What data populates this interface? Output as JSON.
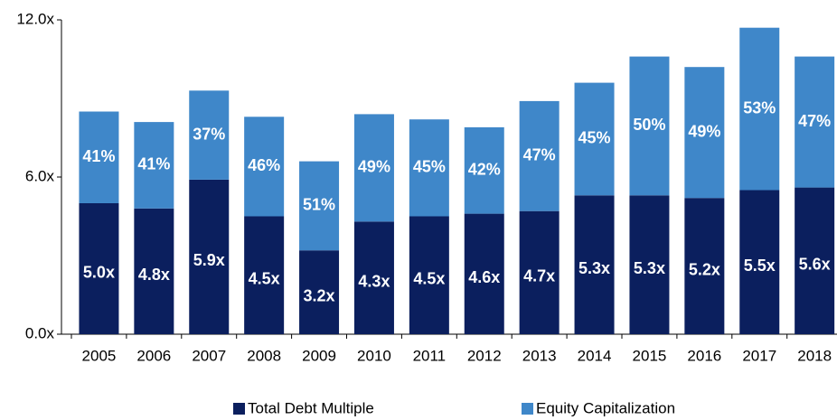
{
  "chart_data": {
    "type": "stacked-bar",
    "categories": [
      "2005",
      "2006",
      "2007",
      "2008",
      "2009",
      "2010",
      "2011",
      "2012",
      "2013",
      "2014",
      "2015",
      "2016",
      "2017",
      "2018"
    ],
    "series": [
      {
        "name": "Total Debt Multiple",
        "color": "#0b1f5e",
        "values": [
          5.0,
          4.8,
          5.9,
          4.5,
          3.2,
          4.3,
          4.5,
          4.6,
          4.7,
          5.3,
          5.3,
          5.2,
          5.5,
          5.6
        ],
        "value_labels": [
          "5.0x",
          "4.8x",
          "5.9x",
          "4.5x",
          "3.2x",
          "4.3x",
          "4.5x",
          "4.6x",
          "4.7x",
          "5.3x",
          "5.3x",
          "5.2x",
          "5.5x",
          "5.6x"
        ]
      },
      {
        "name": "Equity Capitalization",
        "color": "#3f87c9",
        "values": [
          3.5,
          3.3,
          3.4,
          3.8,
          3.4,
          4.1,
          3.7,
          3.3,
          4.2,
          4.3,
          5.3,
          5.0,
          6.2,
          5.0
        ],
        "labels": [
          "41%",
          "41%",
          "37%",
          "46%",
          "51%",
          "49%",
          "45%",
          "42%",
          "47%",
          "45%",
          "50%",
          "49%",
          "53%",
          "47%"
        ]
      }
    ],
    "ylim": [
      0,
      12
    ],
    "yticks": [
      {
        "value": 0,
        "label": "0.0x"
      },
      {
        "value": 6,
        "label": "6.0x"
      },
      {
        "value": 12,
        "label": "12.0x"
      }
    ],
    "legend": "bottom"
  }
}
